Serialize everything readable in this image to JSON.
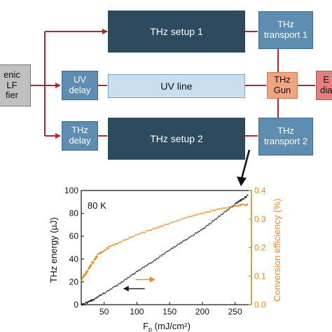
{
  "diagram": {
    "laser_label": "enic\nLF\nfier",
    "uv_delay_label": "UV\ndelay",
    "thz_delay_label": "THz\ndelay",
    "thz_setup1_label": "THz setup 1",
    "thz_setup2_label": "THz setup 2",
    "uv_line_label": "UV line",
    "thz_transport1_label": "THz\ntransport 1",
    "thz_transport2_label": "THz\ntransport 2",
    "thz_gun_label": "THz\nGun",
    "e_diag_label": "E\ndia",
    "colors": {
      "dark_box": "#2d4a5e",
      "mid_box": "#5d8db0",
      "light_box": "#c9dfef",
      "gun_box": "#f0a47f",
      "diag_box": "#e57f7f",
      "laser_box": "#c0c0c0",
      "line": "#b5232b"
    }
  },
  "chart_data": {
    "type": "line",
    "annotation": "80 K",
    "xlabel": "F_p (mJ/cm²)",
    "xlabel_main": "F",
    "xlabel_sub": "p",
    "xlabel_units": " (mJ/cm²)",
    "ylabel": "THz energy (µJ)",
    "y2label": "Conversion efficiency (%)",
    "xlim": [
      15,
      275
    ],
    "ylim": [
      0,
      100
    ],
    "y2lim": [
      0,
      0.4
    ],
    "xticks": [
      "50",
      "100",
      "150",
      "200",
      "250"
    ],
    "yticks": [
      "0",
      "20",
      "40",
      "60",
      "80",
      "100"
    ],
    "y2ticks": [
      "0.0",
      "0.1",
      "0.2",
      "0.3",
      "0.4"
    ],
    "series": [
      {
        "axis": "left",
        "color": "#1a1a1a",
        "x": [
          15,
          25,
          35,
          50,
          75,
          100,
          125,
          150,
          175,
          200,
          225,
          250,
          260,
          270
        ],
        "y": [
          0,
          2,
          5,
          10,
          19,
          29,
          38,
          48,
          57,
          66,
          77,
          88,
          92,
          96
        ]
      },
      {
        "axis": "right",
        "color": "#e58a1f",
        "x": [
          15,
          20,
          25,
          30,
          35,
          40,
          50,
          60,
          75,
          100,
          125,
          150,
          175,
          200,
          225,
          250,
          260,
          270
        ],
        "y": [
          0.085,
          0.105,
          0.12,
          0.14,
          0.155,
          0.175,
          0.19,
          0.205,
          0.22,
          0.245,
          0.265,
          0.285,
          0.305,
          0.32,
          0.335,
          0.345,
          0.35,
          0.35
        ]
      }
    ],
    "arrows": [
      {
        "color": "#e58a1f",
        "x_from": 98,
        "x_to": 127,
        "y": 22,
        "axis": "left"
      },
      {
        "color": "#1a1a1a",
        "x_from": 112,
        "x_to": 80,
        "y": 14,
        "axis": "left"
      }
    ]
  }
}
